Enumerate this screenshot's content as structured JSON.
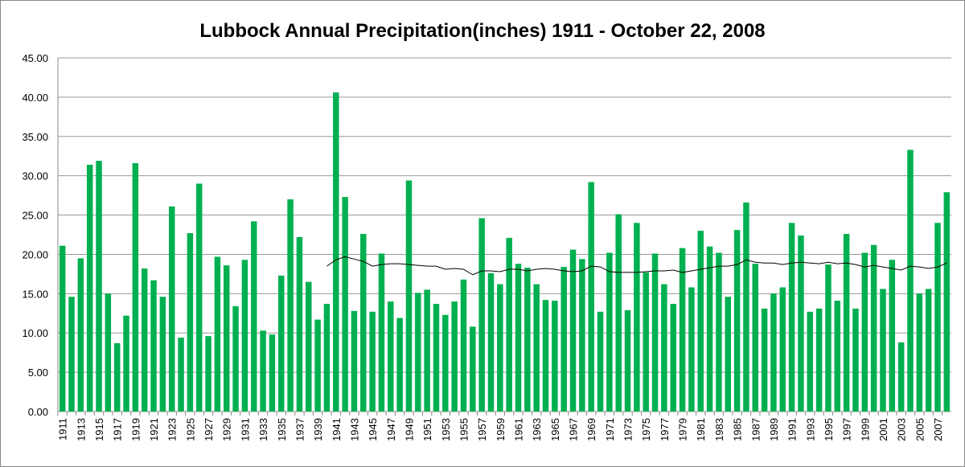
{
  "chart_data": {
    "type": "bar",
    "title": "Lubbock Annual Precipitation(inches) 1911 - October 22, 2008",
    "categories": [
      "1911",
      null,
      "1913",
      null,
      "1915",
      null,
      "1917",
      null,
      "1919",
      null,
      "1921",
      null,
      "1923",
      null,
      "1925",
      null,
      "1927",
      null,
      "1929",
      null,
      "1931",
      null,
      "1933",
      null,
      "1935",
      null,
      "1937",
      null,
      "1939",
      null,
      "1941",
      null,
      "1943",
      null,
      "1945",
      null,
      "1947",
      null,
      "1949",
      null,
      "1951",
      null,
      "1953",
      null,
      "1955",
      null,
      "1957",
      null,
      "1959",
      null,
      "1961",
      null,
      "1963",
      null,
      "1965",
      null,
      "1967",
      null,
      "1969",
      null,
      "1971",
      null,
      "1973",
      null,
      "1975",
      null,
      "1977",
      null,
      "1979",
      null,
      "1981",
      null,
      "1983",
      null,
      "1985",
      null,
      "1987",
      null,
      "1989",
      null,
      "1991",
      null,
      "1993",
      null,
      "1995",
      null,
      "1997",
      null,
      "1999",
      null,
      "2001",
      null,
      "2003",
      null,
      "2005",
      null,
      "2007",
      null
    ],
    "series": [
      {
        "type": "bar",
        "color": "#00b050",
        "values": [
          21.1,
          14.6,
          19.5,
          31.4,
          31.9,
          15.0,
          8.7,
          12.2,
          31.6,
          18.2,
          16.7,
          14.6,
          26.1,
          9.4,
          22.7,
          29.0,
          9.6,
          19.7,
          18.6,
          13.4,
          19.3,
          24.2,
          10.3,
          9.8,
          17.3,
          27.0,
          22.2,
          16.5,
          11.7,
          13.7,
          40.6,
          27.3,
          12.8,
          22.6,
          12.7,
          20.1,
          14.0,
          11.9,
          29.4,
          15.1,
          15.5,
          13.7,
          12.3,
          14.0,
          16.8,
          10.8,
          24.6,
          17.6,
          16.2,
          22.1,
          18.8,
          18.3,
          16.2,
          14.2,
          14.1,
          18.4,
          20.6,
          19.4,
          29.2,
          12.7,
          20.2,
          25.1,
          12.9,
          24.0,
          17.7,
          20.1,
          16.2,
          13.7,
          20.8,
          15.8,
          23.0,
          21.0,
          20.2,
          14.6,
          23.1,
          26.6,
          18.8,
          13.1,
          15.0,
          15.8,
          24.0,
          22.4,
          12.7,
          13.1,
          18.7,
          14.1,
          22.6,
          13.1,
          20.2,
          21.2,
          15.6,
          19.3,
          8.8,
          33.3,
          15.0,
          15.6,
          24.0,
          27.9
        ]
      },
      {
        "type": "line",
        "color": "#000000",
        "values": [
          null,
          null,
          null,
          null,
          null,
          null,
          null,
          null,
          null,
          null,
          null,
          null,
          null,
          null,
          null,
          null,
          null,
          null,
          null,
          null,
          null,
          null,
          null,
          null,
          null,
          null,
          null,
          null,
          null,
          18.5,
          19.3,
          19.7,
          19.4,
          19.1,
          18.5,
          18.7,
          18.8,
          18.8,
          18.7,
          18.6,
          18.5,
          18.5,
          18.1,
          18.2,
          18.1,
          17.4,
          17.9,
          17.9,
          17.8,
          18.1,
          18.1,
          17.9,
          18.1,
          18.2,
          18.1,
          17.9,
          17.8,
          17.9,
          18.5,
          18.4,
          17.8,
          17.7,
          17.7,
          17.7,
          17.8,
          17.9,
          17.9,
          18.0,
          17.7,
          17.9,
          18.1,
          18.3,
          18.5,
          18.5,
          18.7,
          19.3,
          19.0,
          18.9,
          18.9,
          18.7,
          18.9,
          19.0,
          18.9,
          18.8,
          19.0,
          18.8,
          18.9,
          18.7,
          18.4,
          18.6,
          18.4,
          18.2,
          18.0,
          18.5,
          18.4,
          18.2,
          18.4,
          18.9
        ]
      }
    ],
    "ylim": [
      0,
      45
    ],
    "yticks": [
      {
        "value": 0,
        "label": "0.00"
      },
      {
        "value": 5,
        "label": "5.00"
      },
      {
        "value": 10,
        "label": "10.00"
      },
      {
        "value": 15,
        "label": "15.00"
      },
      {
        "value": 20,
        "label": "20.00"
      },
      {
        "value": 25,
        "label": "25.00"
      },
      {
        "value": 30,
        "label": "30.00"
      },
      {
        "value": 35,
        "label": "35.00"
      },
      {
        "value": 40,
        "label": "40.00"
      },
      {
        "value": 45,
        "label": "45.00"
      }
    ],
    "grid": true
  }
}
